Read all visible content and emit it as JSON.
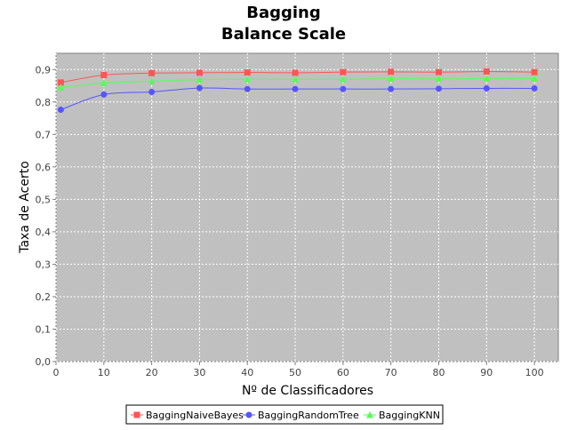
{
  "chart_data": {
    "type": "line",
    "title": "Bagging",
    "subtitle": "Balance Scale",
    "xlabel": "Nº de Classificadores",
    "ylabel": "Taxa de Acerto",
    "xlim": [
      0,
      105
    ],
    "ylim": [
      0,
      0.95
    ],
    "x_ticks": [
      0,
      10,
      20,
      30,
      40,
      50,
      60,
      70,
      80,
      90,
      100
    ],
    "x_tick_labels": [
      "0",
      "10",
      "20",
      "30",
      "40",
      "50",
      "60",
      "70",
      "80",
      "90",
      "100"
    ],
    "y_ticks": [
      0,
      0.1,
      0.2,
      0.3,
      0.4,
      0.5,
      0.6,
      0.7,
      0.8,
      0.9
    ],
    "y_tick_labels": [
      "0,0",
      "0,1",
      "0,2",
      "0,3",
      "0,4",
      "0,5",
      "0,6",
      "0,7",
      "0,8",
      "0,9"
    ],
    "grid": true,
    "background_color": "#c0c0c0",
    "gridline_color": "#ffffff",
    "legend_position": "bottom",
    "x": [
      1,
      10,
      20,
      30,
      40,
      50,
      60,
      70,
      80,
      90,
      100
    ],
    "series": [
      {
        "name": "BaggingNaiveBayes",
        "color": "#ff5555",
        "marker": "square",
        "values": [
          0.86,
          0.883,
          0.889,
          0.89,
          0.891,
          0.89,
          0.892,
          0.893,
          0.892,
          0.894,
          0.892
        ]
      },
      {
        "name": "BaggingRandomTree",
        "color": "#5555ff",
        "marker": "circle",
        "values": [
          0.776,
          0.823,
          0.831,
          0.843,
          0.84,
          0.84,
          0.84,
          0.84,
          0.841,
          0.842,
          0.842
        ]
      },
      {
        "name": "BaggingKNN",
        "color": "#55ff55",
        "marker": "triangle",
        "values": [
          0.845,
          0.858,
          0.864,
          0.869,
          0.87,
          0.87,
          0.87,
          0.872,
          0.871,
          0.872,
          0.872
        ]
      }
    ]
  }
}
